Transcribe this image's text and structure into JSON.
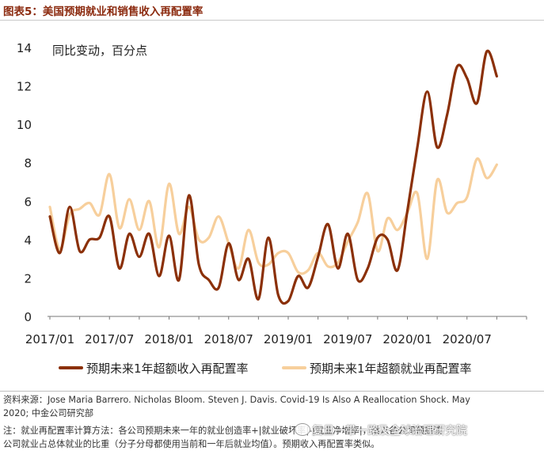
{
  "header": {
    "title": "图表5：美国预期就业和销售收入再配置率"
  },
  "chart_data": {
    "type": "line",
    "title": "图表5：美国预期就业和销售收入再配置率",
    "annotation": "同比变动，百分点",
    "ylim": [
      0,
      14
    ],
    "yticks": [
      0,
      2,
      4,
      6,
      8,
      10,
      12,
      14
    ],
    "x_start": "2017/01",
    "x_ticks": [
      {
        "label": "2017/01",
        "month_index": 0
      },
      {
        "label": "2017/07",
        "month_index": 6
      },
      {
        "label": "2018/01",
        "month_index": 12
      },
      {
        "label": "2018/07",
        "month_index": 18
      },
      {
        "label": "2019/01",
        "month_index": 24
      },
      {
        "label": "2019/07",
        "month_index": 30
      },
      {
        "label": "2020/01",
        "month_index": 36
      },
      {
        "label": "2020/07",
        "month_index": 42
      }
    ],
    "x_range_months": [
      0,
      48
    ],
    "series": [
      {
        "name": "预期未来1年超额收入再配置率",
        "color": "#8b3008",
        "values": [
          5.2,
          3.3,
          5.7,
          3.4,
          4.0,
          4.1,
          5.2,
          2.5,
          4.3,
          3.1,
          4.3,
          2.1,
          4.2,
          1.9,
          6.3,
          2.7,
          1.9,
          1.5,
          3.8,
          1.9,
          3.0,
          0.9,
          4.1,
          1.1,
          0.8,
          2.1,
          1.5,
          3.1,
          4.8,
          2.5,
          4.3,
          1.9,
          2.5,
          4.1,
          4.0,
          2.4,
          5.5,
          8.8,
          11.7,
          8.8,
          10.5,
          13.0,
          12.4,
          11.1,
          13.8,
          12.5
        ]
      },
      {
        "name": "预期未来1年超额就业再配置率",
        "color": "#f7cf9c",
        "values": [
          5.7,
          3.5,
          5.3,
          5.6,
          5.9,
          5.3,
          7.4,
          4.6,
          6.1,
          4.5,
          6.0,
          3.6,
          6.9,
          4.3,
          5.7,
          4.0,
          4.1,
          5.2,
          3.8,
          2.5,
          4.5,
          2.8,
          2.7,
          3.3,
          3.3,
          2.3,
          2.4,
          3.3,
          2.6,
          2.8,
          3.9,
          4.9,
          6.4,
          3.4,
          5.1,
          4.5,
          5.4,
          6.4,
          3.0,
          7.1,
          5.4,
          5.9,
          6.2,
          8.2,
          7.2,
          7.9
        ]
      }
    ],
    "legend_position": "bottom"
  },
  "source": {
    "line1": "资料来源：Jose Maria Barrero. Nicholas Bloom. Steven J. Davis. Covid-19 Is   Also A Reallocation Shock. May",
    "line2": "2020; 中金公司研究部",
    "line3": "注：就业再配置率计算方法：各公司预期未来一年的就业创造率+|就业破坏率|-|就业净增率|，乘以各公司预期该",
    "line4": "公司就业占总体就业的比重（分子分母都使用当前和一年后就业均值）。预期收入再配置率类似。"
  },
  "watermark": {
    "text": "复旦一带一路及全球治理研究院"
  }
}
